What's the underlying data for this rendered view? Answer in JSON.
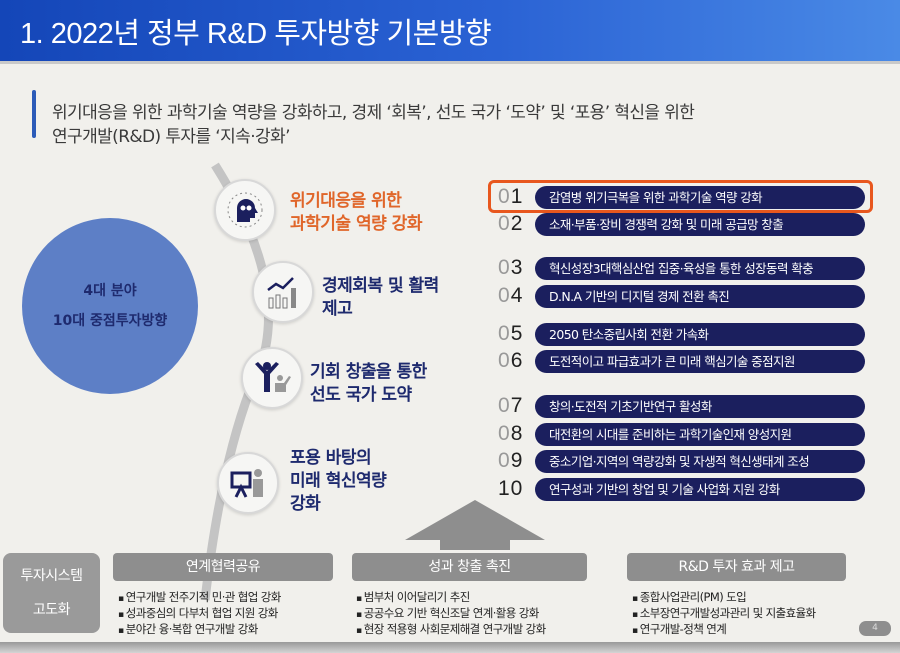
{
  "title": "1. 2022년 정부 R&D 투자방향 기본방향",
  "subtitle": {
    "line1": "위기대응을 위한 과학기술 역량을 강화하고, 경제 ‘회복’, 선도 국가 ‘도약’ 및 ‘포용’ 혁신을 위한",
    "line2": "연구개발(R&D) 투자를 ‘지속·강화’"
  },
  "center": {
    "line1": "4대 분야",
    "line2": "10대 중점투자방향"
  },
  "areas": [
    {
      "icon": "ai-head-icon",
      "line1": "위기대응을 위한",
      "line2": "과학기술 역량 강화",
      "highlight": true
    },
    {
      "icon": "growth-chart-icon",
      "line1": "경제회복 및 활력",
      "line2": "제고"
    },
    {
      "icon": "people-cheering-icon",
      "line1": "기회 창출을 통한",
      "line2": "선도 국가 도약"
    },
    {
      "icon": "presenter-icon",
      "line1": "포용 바탕의",
      "line2": "미래 혁신역량",
      "line3": "강화"
    }
  ],
  "directions": [
    {
      "n0": "0",
      "n1": "1",
      "text": "감염병 위기극복을 위한 과학기술 역량 강화"
    },
    {
      "n0": "0",
      "n1": "2",
      "text": "소재·부품·장비 경쟁력 강화 및 미래 공급망 창출"
    },
    {
      "n0": "0",
      "n1": "3",
      "text": "혁신성장3대핵심산업 집중·육성을 통한 성장동력 확충"
    },
    {
      "n0": "0",
      "n1": "4",
      "text": "D.N.A 기반의 디지털 경제 전환 촉진"
    },
    {
      "n0": "0",
      "n1": "5",
      "text": "2050 탄소중립사회 전환 가속화"
    },
    {
      "n0": "0",
      "n1": "6",
      "text": "도전적이고 파급효과가 큰 미래 핵심기술 중점지원"
    },
    {
      "n0": "0",
      "n1": "7",
      "text": "창의·도전적 기초기반연구 활성화"
    },
    {
      "n0": "0",
      "n1": "8",
      "text": "대전환의 시대를 준비하는 과학기술인재 양성지원"
    },
    {
      "n0": "0",
      "n1": "9",
      "text": "중소기업·지역의 역량강화 및 자생적 혁신생태계 조성"
    },
    {
      "n0": "",
      "n1": "10",
      "text": "연구성과 기반의 창업 및 기술 사업화 지원 강화"
    }
  ],
  "system": {
    "line1": "투자시스템",
    "line2": "고도화"
  },
  "pillars": [
    {
      "header": "연계협력공유",
      "items": [
        "연구개발 전주기적 민·관 협업 강화",
        "성과중심의 다부처 협업 지원 강화",
        "분야간 융·복합 연구개발 강화"
      ]
    },
    {
      "header": "성과 창출 촉진",
      "items": [
        "범부처 이어달리기 추진",
        "공공수요 기반 혁신조달 연계·활용 강화",
        "현장 적용형 사회문제해결 연구개발 강화"
      ]
    },
    {
      "header": "R&D 투자 효과 제고",
      "items": [
        "종합사업관리(PM) 도입",
        "소부장연구개발성과관리 및 지출효율화",
        "연구개발-정책 연계"
      ]
    }
  ],
  "page_number": "4",
  "colors": {
    "title_bg": "#1446b8",
    "navy": "#1b1f5e",
    "highlight": "#e8571e",
    "circle": "#5d7fc6"
  }
}
